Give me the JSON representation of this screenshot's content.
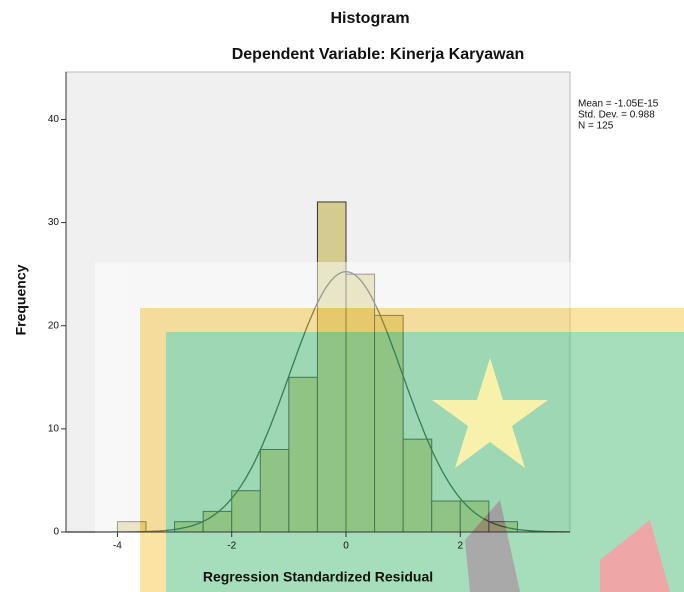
{
  "chart_data": {
    "type": "histogram",
    "title": "Histogram",
    "subtitle": "Dependent Variable: Kinerja Karyawan",
    "x_label": "Regression Standardized Residual",
    "y_label": "Frequency",
    "bins": [
      -4,
      -3.5,
      -3,
      -2.5,
      -2,
      -1.5,
      -1,
      -0.5,
      0,
      0.5,
      1,
      1.5,
      2,
      2.5,
      3
    ],
    "values": [
      1,
      0,
      1,
      2,
      4,
      8,
      15,
      32,
      25,
      21,
      9,
      3,
      3,
      1
    ],
    "color": "#d4cb8f",
    "xlim": [
      -4.9,
      3.92
    ],
    "xticks": [
      -4,
      -2,
      0,
      2
    ],
    "ylim": [
      0,
      44.6
    ],
    "yticks": [
      0,
      10,
      20,
      30,
      40
    ],
    "stats": [
      {
        "value": -1.05e-15,
        "label": "Mean = -1.05E-15"
      },
      {
        "value": 0.988,
        "label": "Std. Dev. = 0.988"
      },
      {
        "value": 125,
        "label": "N = 125"
      }
    ]
  }
}
